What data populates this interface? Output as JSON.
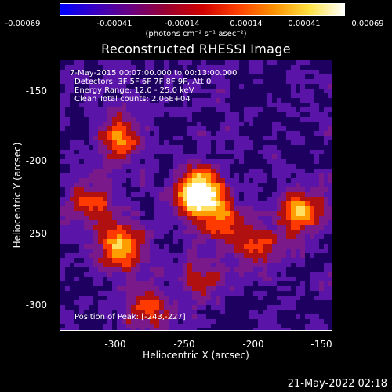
{
  "colorbar": {
    "tick_labels": [
      "-0.00069",
      "-0.00041",
      "-0.00014",
      "0.00014",
      "0.00041",
      "0.00069"
    ],
    "units_label": "(photons cm⁻² s⁻¹ asec⁻²)"
  },
  "plot": {
    "title": "Reconstructed RHESSI Image",
    "x_label": "Heliocentric X (arcsec)",
    "y_label": "Heliocentric Y (arcsec)",
    "x_ticks": [
      "-300",
      "-250",
      "-200",
      "-150"
    ],
    "y_ticks": [
      "-150",
      "-200",
      "-250",
      "-300"
    ],
    "info_lines": [
      "7-May-2015 00:07:00.000 to 00:13:00.000",
      "Detectors: 3F 5F 6F 7F 8F 9F, Att 0",
      "Energy Range: 12.0 - 25.0 keV",
      "Clean    Total counts: 2.06E+04"
    ],
    "peak_label": "Position of Peak: [-243,-227]"
  },
  "timestamp": "21-May-2022 02:18",
  "chart_data": {
    "type": "heatmap",
    "title": "Reconstructed RHESSI Image",
    "xlabel": "Heliocentric X (arcsec)",
    "ylabel": "Heliocentric Y (arcsec)",
    "xlim": [
      -343,
      -147
    ],
    "ylim": [
      -320,
      -137
    ],
    "colorbar_range": [
      -0.00069,
      0.00069
    ],
    "peak": [
      -243,
      -227
    ],
    "sources": [
      {
        "x": -243,
        "y": -227,
        "amplitude": 1.0
      },
      {
        "x": -300,
        "y": -262,
        "amplitude": 0.62
      },
      {
        "x": -170,
        "y": -240,
        "amplitude": 0.58
      },
      {
        "x": -300,
        "y": -190,
        "amplitude": 0.5
      },
      {
        "x": -225,
        "y": -245,
        "amplitude": 0.45
      },
      {
        "x": -320,
        "y": -232,
        "amplitude": 0.4
      },
      {
        "x": -280,
        "y": -305,
        "amplitude": 0.4
      },
      {
        "x": -200,
        "y": -262,
        "amplitude": 0.35
      },
      {
        "x": -240,
        "y": -285,
        "amplitude": 0.3
      }
    ],
    "colors": [
      "#1e0060",
      "#5a14a8",
      "#7a1a8a",
      "#b01010",
      "#ff3a00",
      "#ff9e00",
      "#ffe060",
      "#ffffff"
    ]
  }
}
